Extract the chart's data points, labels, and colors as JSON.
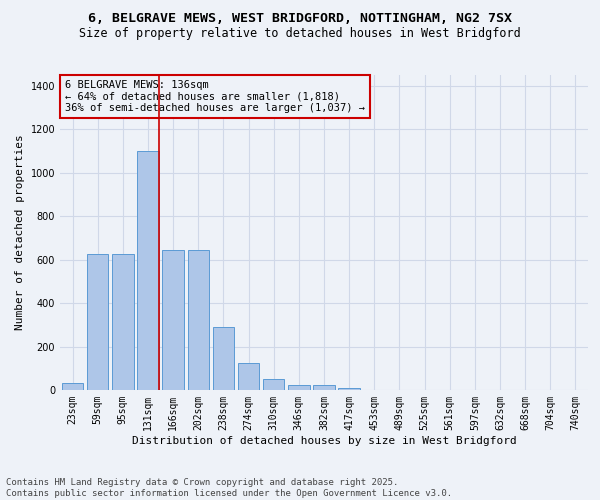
{
  "title_line1": "6, BELGRAVE MEWS, WEST BRIDGFORD, NOTTINGHAM, NG2 7SX",
  "title_line2": "Size of property relative to detached houses in West Bridgford",
  "xlabel": "Distribution of detached houses by size in West Bridgford",
  "ylabel": "Number of detached properties",
  "categories": [
    "23sqm",
    "59sqm",
    "95sqm",
    "131sqm",
    "166sqm",
    "202sqm",
    "238sqm",
    "274sqm",
    "310sqm",
    "346sqm",
    "382sqm",
    "417sqm",
    "453sqm",
    "489sqm",
    "525sqm",
    "561sqm",
    "597sqm",
    "632sqm",
    "668sqm",
    "704sqm",
    "740sqm"
  ],
  "values": [
    30,
    625,
    625,
    1100,
    645,
    645,
    290,
    125,
    50,
    25,
    25,
    10,
    0,
    0,
    0,
    0,
    0,
    0,
    0,
    0,
    0
  ],
  "bar_color": "#aec6e8",
  "bar_edge_color": "#5b9bd5",
  "property_bin_index": 3,
  "annotation_text": "6 BELGRAVE MEWS: 136sqm\n← 64% of detached houses are smaller (1,818)\n36% of semi-detached houses are larger (1,037) →",
  "vline_color": "#cc0000",
  "annotation_box_edge_color": "#cc0000",
  "ylim": [
    0,
    1450
  ],
  "yticks": [
    0,
    200,
    400,
    600,
    800,
    1000,
    1200,
    1400
  ],
  "grid_color": "#d0d8e8",
  "bg_color": "#eef2f8",
  "footer_line1": "Contains HM Land Registry data © Crown copyright and database right 2025.",
  "footer_line2": "Contains public sector information licensed under the Open Government Licence v3.0.",
  "title_fontsize": 9.5,
  "subtitle_fontsize": 8.5,
  "axis_label_fontsize": 8,
  "tick_fontsize": 7,
  "annotation_fontsize": 7.5,
  "footer_fontsize": 6.5
}
